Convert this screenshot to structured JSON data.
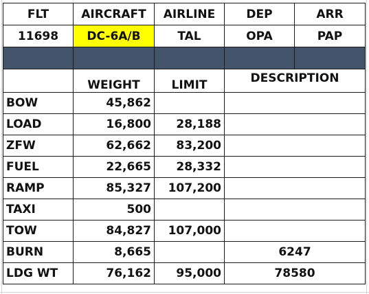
{
  "header": {
    "flt_label": "FLT",
    "aircraft_label": "AIRCRAFT",
    "airline_label": "AIRLINE",
    "dep_label": "DEP",
    "arr_label": "ARR"
  },
  "flight": {
    "flt": "11698",
    "aircraft": "DC-6A/B",
    "airline": "TAL",
    "dep": "OPA",
    "arr": "PAP"
  },
  "columns": {
    "weight": "WEIGHT",
    "limit": "LIMIT",
    "description": "DESCRIPTION"
  },
  "rows": [
    {
      "label": "BOW",
      "weight": "45,862",
      "limit": "",
      "description": ""
    },
    {
      "label": "LOAD",
      "weight": "16,800",
      "limit": "28,188",
      "description": ""
    },
    {
      "label": "ZFW",
      "weight": "62,662",
      "limit": "83,200",
      "description": ""
    },
    {
      "label": "FUEL",
      "weight": "22,665",
      "limit": "28,332",
      "description": ""
    },
    {
      "label": "RAMP",
      "weight": "85,327",
      "limit": "107,200",
      "description": ""
    },
    {
      "label": "TAXI",
      "weight": "500",
      "limit": "",
      "description": ""
    },
    {
      "label": "TOW",
      "weight": "84,827",
      "limit": "107,000",
      "description": ""
    },
    {
      "label": "BURN",
      "weight": "8,665",
      "limit": "",
      "description": "6247"
    },
    {
      "label": "LDG WT",
      "weight": "76,162",
      "limit": "95,000",
      "description": "78580"
    }
  ],
  "colors": {
    "highlight": "#ffff00",
    "band": "#44546a",
    "border": "#1a1a1a"
  }
}
